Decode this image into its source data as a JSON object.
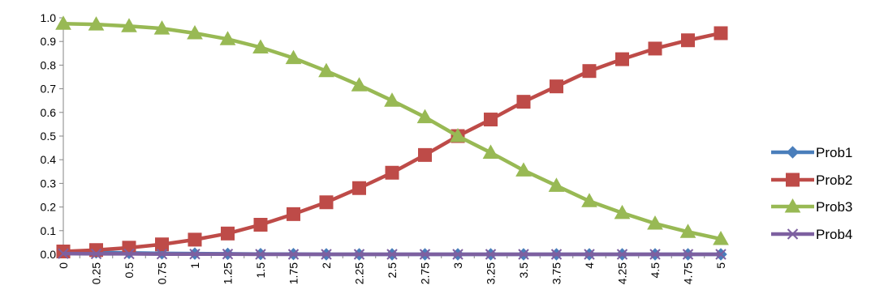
{
  "chart_data": {
    "type": "line",
    "x": [
      "0",
      "0.25",
      "0.5",
      "0.75",
      "1",
      "1.25",
      "1.5",
      "1.75",
      "2",
      "2.25",
      "2.5",
      "2.75",
      "3",
      "3.25",
      "3.5",
      "3.75",
      "4",
      "4.25",
      "4.5",
      "4.75",
      "5"
    ],
    "ylim": [
      0,
      1.0
    ],
    "y_ticks": [
      "0.0",
      "0.1",
      "0.2",
      "0.3",
      "0.4",
      "0.5",
      "0.6",
      "0.7",
      "0.8",
      "0.9",
      "1.0"
    ],
    "grid": false,
    "legend_position": "right",
    "series": [
      {
        "name": "Prob1",
        "color": "#4a7ebb",
        "marker": "diamond",
        "values": [
          0.01,
          0.008,
          0.006,
          0.004,
          0.003,
          0.002,
          0.001,
          0.001,
          0,
          0,
          0,
          0,
          0,
          0,
          0,
          0,
          0,
          0,
          0,
          0,
          0
        ]
      },
      {
        "name": "Prob2",
        "color": "#be4b48",
        "marker": "square",
        "values": [
          0.012,
          0.018,
          0.028,
          0.042,
          0.062,
          0.088,
          0.125,
          0.17,
          0.22,
          0.28,
          0.345,
          0.42,
          0.5,
          0.57,
          0.645,
          0.71,
          0.775,
          0.825,
          0.87,
          0.905,
          0.935
        ]
      },
      {
        "name": "Prob3",
        "color": "#98b954",
        "marker": "triangle",
        "values": [
          0.975,
          0.972,
          0.965,
          0.955,
          0.935,
          0.91,
          0.875,
          0.83,
          0.775,
          0.715,
          0.65,
          0.58,
          0.5,
          0.43,
          0.355,
          0.29,
          0.225,
          0.175,
          0.13,
          0.095,
          0.065
        ]
      },
      {
        "name": "Prob4",
        "color": "#7d60a0",
        "marker": "x",
        "values": [
          0.003,
          0.002,
          0.002,
          0.001,
          0.001,
          0.001,
          0,
          0,
          0,
          0,
          0,
          0,
          0,
          0,
          0,
          0,
          0,
          0,
          0,
          0,
          0
        ]
      }
    ]
  }
}
